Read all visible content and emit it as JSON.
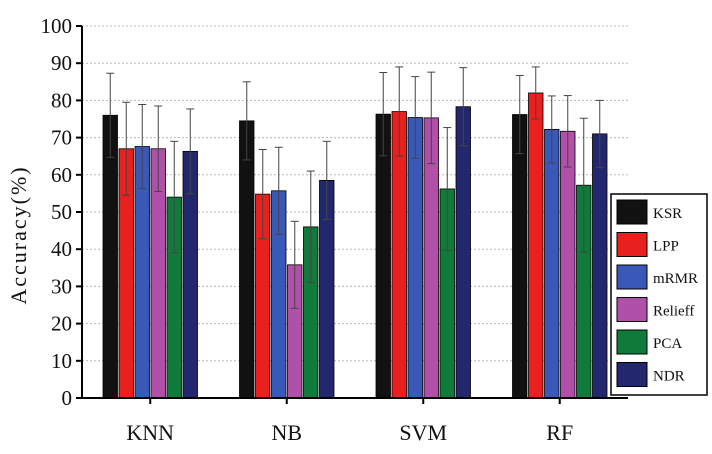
{
  "chart_data": {
    "type": "bar",
    "title": "",
    "xlabel": "",
    "ylabel": "Accuracy(%)",
    "ylim": [
      0,
      100
    ],
    "yticks": [
      "0",
      "10",
      "20",
      "30",
      "40",
      "50",
      "60",
      "70",
      "80",
      "90",
      "100"
    ],
    "grid": true,
    "legend_position": "right",
    "categories": [
      "KNN",
      "NB",
      "SVM",
      "RF"
    ],
    "series": [
      {
        "name": "KSR",
        "color": "#111111",
        "values": [
          76,
          74.5,
          76.3,
          76.2
        ],
        "errors": [
          11.3,
          10.5,
          11.2,
          10.5
        ]
      },
      {
        "name": "LPP",
        "color": "#e8201e",
        "values": [
          67,
          54.8,
          77,
          82
        ],
        "errors": [
          12.5,
          12,
          12,
          7
        ]
      },
      {
        "name": "mRMR",
        "color": "#3a58b8",
        "values": [
          67.6,
          55.7,
          75.4,
          72.2
        ],
        "errors": [
          11.3,
          11.7,
          11,
          9
        ]
      },
      {
        "name": "Relieff",
        "color": "#b050a8",
        "values": [
          67,
          35.8,
          75.3,
          71.7
        ],
        "errors": [
          11.5,
          11.7,
          12.3,
          9.6
        ]
      },
      {
        "name": "PCA",
        "color": "#0f7a3a",
        "values": [
          54,
          46,
          56.2,
          57.2
        ],
        "errors": [
          15,
          15,
          16.5,
          18
        ]
      },
      {
        "name": "NDR",
        "color": "#23286e",
        "values": [
          66.3,
          58.5,
          78.3,
          71
        ],
        "errors": [
          11.4,
          10.5,
          10.5,
          9
        ]
      }
    ]
  }
}
